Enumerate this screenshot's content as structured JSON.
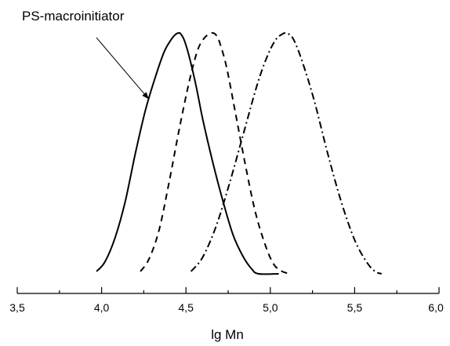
{
  "chart_data": {
    "type": "line",
    "title": "",
    "xlabel": "lg Mn",
    "ylabel": "",
    "xlim": [
      3.5,
      6.0
    ],
    "ylim": [
      0,
      1.0
    ],
    "x_ticks": [
      "3,5",
      "4,0",
      "4,5",
      "5,0",
      "5,5",
      "6,0"
    ],
    "x_tick_values": [
      3.5,
      4.0,
      4.5,
      5.0,
      5.5,
      6.0
    ],
    "y_axis_visible": false,
    "grid": false,
    "legend": "none",
    "series": [
      {
        "line_style": "solid",
        "x": [
          3.97,
          4.02,
          4.08,
          4.14,
          4.2,
          4.26,
          4.32,
          4.37,
          4.41,
          4.44,
          4.46,
          4.47,
          4.49,
          4.52,
          4.56,
          4.6,
          4.66,
          4.72,
          4.78,
          4.84,
          4.89,
          4.93,
          5.05
        ],
        "y": [
          0.01,
          0.05,
          0.15,
          0.3,
          0.5,
          0.68,
          0.82,
          0.92,
          0.97,
          0.995,
          1.0,
          0.995,
          0.97,
          0.9,
          0.78,
          0.64,
          0.46,
          0.3,
          0.16,
          0.07,
          0.02,
          0.0,
          0.0
        ]
      },
      {
        "line_style": "dashed",
        "x": [
          4.23,
          4.28,
          4.34,
          4.4,
          4.46,
          4.52,
          4.57,
          4.61,
          4.64,
          4.66,
          4.68,
          4.7,
          4.74,
          4.79,
          4.85,
          4.91,
          4.97,
          5.02,
          5.07,
          5.12
        ],
        "y": [
          0.01,
          0.06,
          0.18,
          0.38,
          0.6,
          0.8,
          0.93,
          0.98,
          0.995,
          1.0,
          0.99,
          0.96,
          0.86,
          0.68,
          0.46,
          0.26,
          0.12,
          0.04,
          0.01,
          0.0
        ]
      },
      {
        "line_style": "dash-dot",
        "x": [
          4.53,
          4.6,
          4.68,
          4.76,
          4.84,
          4.92,
          4.98,
          5.03,
          5.07,
          5.09,
          5.11,
          5.14,
          5.19,
          5.26,
          5.34,
          5.42,
          5.5,
          5.57,
          5.62,
          5.66
        ],
        "y": [
          0.01,
          0.07,
          0.2,
          0.38,
          0.58,
          0.78,
          0.9,
          0.97,
          0.995,
          1.0,
          0.995,
          0.97,
          0.88,
          0.72,
          0.5,
          0.3,
          0.14,
          0.05,
          0.01,
          0.0
        ]
      }
    ],
    "annotations": [
      {
        "text": "PS-macroinitiator",
        "arrow_to": {
          "x": 4.28,
          "y": 0.725
        }
      }
    ]
  }
}
